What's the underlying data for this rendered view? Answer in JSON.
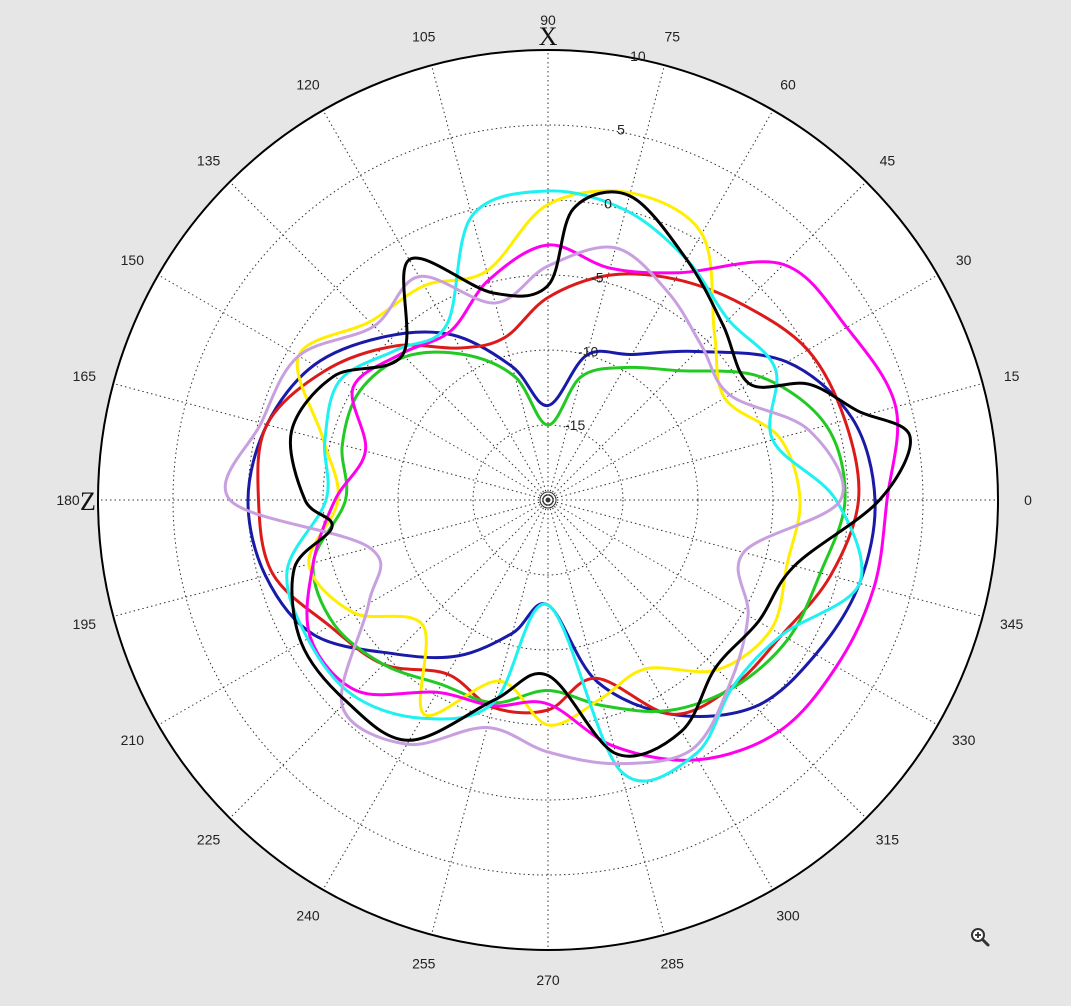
{
  "chart_data": {
    "type": "polar-line",
    "theta_unit": "degrees",
    "theta_ticks": [
      0,
      15,
      30,
      45,
      60,
      75,
      90,
      105,
      120,
      135,
      150,
      165,
      180,
      195,
      210,
      225,
      240,
      255,
      270,
      285,
      300,
      315,
      330,
      345
    ],
    "radial_ticks": [
      -15,
      -10,
      -5,
      0,
      5,
      10
    ],
    "rlim": [
      -20,
      10
    ],
    "axis_labels": {
      "x_axis_letter": "X",
      "z_axis_letter": "Z"
    },
    "grid": true,
    "series": [
      {
        "color": "#1a1aa8",
        "points": [
          [
            0,
            1.8
          ],
          [
            15,
            1.0
          ],
          [
            30,
            -1.6
          ],
          [
            45,
            -6.0
          ],
          [
            60,
            -8.8
          ],
          [
            75,
            -10.0
          ],
          [
            90,
            -13.7
          ],
          [
            105,
            -10.8
          ],
          [
            120,
            -7.3
          ],
          [
            135,
            -4.6
          ],
          [
            150,
            -2.0
          ],
          [
            165,
            -0.6
          ],
          [
            180,
            0.0
          ],
          [
            195,
            -0.5
          ],
          [
            210,
            -2.0
          ],
          [
            225,
            -5.5
          ],
          [
            240,
            -8.0
          ],
          [
            255,
            -10.8
          ],
          [
            270,
            -13.0
          ],
          [
            285,
            -7.5
          ],
          [
            300,
            -3.5
          ],
          [
            315,
            -0.5
          ],
          [
            330,
            0.6
          ],
          [
            345,
            1.5
          ]
        ]
      },
      {
        "color": "#dd1a1a",
        "points": [
          [
            0,
            0.7
          ],
          [
            15,
            0.5
          ],
          [
            30,
            0.0
          ],
          [
            45,
            -1.6
          ],
          [
            60,
            -3.0
          ],
          [
            75,
            -4.5
          ],
          [
            90,
            -6.5
          ],
          [
            105,
            -8.8
          ],
          [
            120,
            -8.3
          ],
          [
            135,
            -5.5
          ],
          [
            150,
            -2.8
          ],
          [
            165,
            -0.6
          ],
          [
            180,
            -0.7
          ],
          [
            195,
            -1.0
          ],
          [
            210,
            -3.2
          ],
          [
            225,
            -4.5
          ],
          [
            240,
            -6.6
          ],
          [
            255,
            -5.7
          ],
          [
            270,
            -6.0
          ],
          [
            285,
            -7.7
          ],
          [
            300,
            -3.5
          ],
          [
            315,
            -2.5
          ],
          [
            330,
            -2.0
          ],
          [
            345,
            -0.5
          ]
        ]
      },
      {
        "color": "#22c922",
        "points": [
          [
            0,
            -0.2
          ],
          [
            15,
            -0.8
          ],
          [
            30,
            -3.6
          ],
          [
            45,
            -7.8
          ],
          [
            60,
            -9.8
          ],
          [
            75,
            -11.5
          ],
          [
            90,
            -15.0
          ],
          [
            105,
            -11.5
          ],
          [
            120,
            -8.8
          ],
          [
            135,
            -6.5
          ],
          [
            150,
            -5.5
          ],
          [
            165,
            -5.8
          ],
          [
            180,
            -6.5
          ],
          [
            195,
            -3.8
          ],
          [
            210,
            -3.5
          ],
          [
            225,
            -4.5
          ],
          [
            240,
            -5.8
          ],
          [
            255,
            -6.0
          ],
          [
            270,
            -7.3
          ],
          [
            285,
            -5.8
          ],
          [
            300,
            -3.8
          ],
          [
            315,
            -2.4
          ],
          [
            330,
            -1.5
          ],
          [
            345,
            -1.2
          ]
        ]
      },
      {
        "color": "#ffee00",
        "points": [
          [
            0,
            -3.2
          ],
          [
            15,
            -4.0
          ],
          [
            30,
            -6.4
          ],
          [
            45,
            -4.3
          ],
          [
            60,
            0.5
          ],
          [
            75,
            1.2
          ],
          [
            90,
            -0.3
          ],
          [
            105,
            -4.2
          ],
          [
            120,
            -3.5
          ],
          [
            135,
            -3.2
          ],
          [
            150,
            -0.8
          ],
          [
            165,
            -4.5
          ],
          [
            180,
            -6.0
          ],
          [
            195,
            -3.5
          ],
          [
            210,
            -5.0
          ],
          [
            225,
            -8.2
          ],
          [
            240,
            -3.5
          ],
          [
            255,
            -7.5
          ],
          [
            270,
            -5.0
          ],
          [
            285,
            -6.3
          ],
          [
            300,
            -7.0
          ],
          [
            315,
            -4.0
          ],
          [
            330,
            -2.8
          ],
          [
            345,
            -3.5
          ]
        ]
      },
      {
        "color": "#ff00ee",
        "points": [
          [
            0,
            2.6
          ],
          [
            15,
            4.0
          ],
          [
            30,
            3.0
          ],
          [
            45,
            2.2
          ],
          [
            60,
            -2.5
          ],
          [
            75,
            -4.0
          ],
          [
            90,
            -3.0
          ],
          [
            105,
            -4.8
          ],
          [
            120,
            -7.0
          ],
          [
            135,
            -6.2
          ],
          [
            150,
            -5.0
          ],
          [
            165,
            -7.4
          ],
          [
            180,
            -5.8
          ],
          [
            195,
            -3.8
          ],
          [
            210,
            -1.7
          ],
          [
            225,
            -2.0
          ],
          [
            240,
            -5.2
          ],
          [
            255,
            -5.8
          ],
          [
            270,
            -6.4
          ],
          [
            285,
            -3.0
          ],
          [
            300,
            0.0
          ],
          [
            315,
            1.8
          ],
          [
            330,
            2.2
          ],
          [
            345,
            2.5
          ]
        ]
      },
      {
        "color": "#1ff0f0",
        "points": [
          [
            0,
            -0.8
          ],
          [
            15,
            -4.5
          ],
          [
            30,
            -2.5
          ],
          [
            45,
            -3.0
          ],
          [
            60,
            -1.5
          ],
          [
            75,
            0.0
          ],
          [
            90,
            0.6
          ],
          [
            105,
            -0.4
          ],
          [
            120,
            -6.5
          ],
          [
            135,
            -5.8
          ],
          [
            150,
            -4.0
          ],
          [
            165,
            -4.6
          ],
          [
            180,
            -5.2
          ],
          [
            195,
            -2.0
          ],
          [
            210,
            -1.5
          ],
          [
            225,
            -1.6
          ],
          [
            240,
            -3.2
          ],
          [
            255,
            -6.0
          ],
          [
            270,
            -13.0
          ],
          [
            285,
            -1.3
          ],
          [
            300,
            -0.4
          ],
          [
            315,
            -2.5
          ],
          [
            330,
            -2.0
          ],
          [
            345,
            1.5
          ]
        ]
      },
      {
        "color": "#c8a0e0",
        "points": [
          [
            0,
            -0.5
          ],
          [
            15,
            -2.0
          ],
          [
            30,
            -6.0
          ],
          [
            45,
            -5.5
          ],
          [
            60,
            -4.0
          ],
          [
            75,
            -2.6
          ],
          [
            90,
            -4.4
          ],
          [
            105,
            -6.4
          ],
          [
            120,
            -2.8
          ],
          [
            135,
            -3.6
          ],
          [
            150,
            -0.8
          ],
          [
            165,
            -0.2
          ],
          [
            180,
            1.2
          ],
          [
            195,
            -7.7
          ],
          [
            210,
            -6.2
          ],
          [
            225,
            -0.6
          ],
          [
            240,
            -1.2
          ],
          [
            255,
            -4.3
          ],
          [
            270,
            -3.2
          ],
          [
            285,
            -1.8
          ],
          [
            300,
            -0.8
          ],
          [
            315,
            -2.8
          ],
          [
            330,
            -4.6
          ],
          [
            345,
            -6.5
          ]
        ]
      },
      {
        "color": "#000000",
        "points": [
          [
            0,
            2.1
          ],
          [
            10,
            4.5
          ],
          [
            16,
            1.5
          ],
          [
            24,
            -1.0
          ],
          [
            30,
            -4.5
          ],
          [
            45,
            -3.5
          ],
          [
            60,
            -1.5
          ],
          [
            75,
            1.0
          ],
          [
            85,
            -0.5
          ],
          [
            90,
            -5.7
          ],
          [
            105,
            -5.7
          ],
          [
            120,
            -1.5
          ],
          [
            135,
            -6.3
          ],
          [
            150,
            -3.5
          ],
          [
            165,
            -2.3
          ],
          [
            180,
            -3.8
          ],
          [
            187,
            -5.5
          ],
          [
            195,
            -2.5
          ],
          [
            210,
            -1.0
          ],
          [
            225,
            -1.0
          ],
          [
            240,
            -1.5
          ],
          [
            255,
            -6.2
          ],
          [
            270,
            -8.3
          ],
          [
            285,
            -2.5
          ],
          [
            300,
            -2.2
          ],
          [
            315,
            -4.2
          ],
          [
            330,
            -3.8
          ],
          [
            345,
            -3.0
          ]
        ]
      }
    ]
  },
  "zoom_icon": "zoom-in-icon"
}
